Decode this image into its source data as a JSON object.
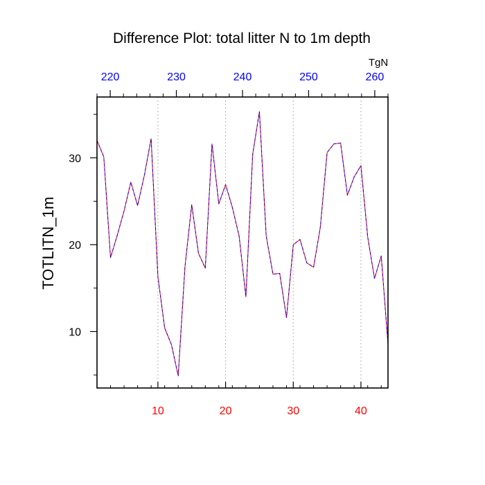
{
  "chart_data": {
    "type": "line",
    "title": "Difference Plot: total litter N to 1m depth",
    "ylabel": "TOTLITN_1m",
    "top_axis_unit": "TgN",
    "bottom_axis": {
      "range": [
        1,
        44
      ],
      "ticks": [
        10,
        20,
        30,
        40
      ],
      "labels": [
        "10",
        "20",
        "30",
        "40"
      ],
      "color": "#ff0000"
    },
    "top_axis": {
      "range": [
        218,
        262
      ],
      "ticks": [
        220,
        230,
        240,
        250,
        260
      ],
      "labels": [
        "220",
        "230",
        "240",
        "250",
        "260"
      ],
      "color": "#0000ff"
    },
    "y_axis": {
      "range": [
        3.5,
        37
      ],
      "ticks": [
        10,
        20,
        30
      ],
      "labels": [
        "10",
        "20",
        "30"
      ],
      "minor_ticks": [
        5,
        15,
        25,
        35
      ]
    },
    "grid": "vertical dashed lines at major bottom ticks",
    "series": [
      {
        "name": "red series",
        "color": "#ff0000",
        "style": "solid",
        "x": [
          1,
          2,
          3,
          4,
          5,
          6,
          7,
          8,
          9,
          10,
          11,
          12,
          13,
          14,
          15,
          16,
          17,
          18,
          19,
          20,
          21,
          22,
          23,
          24,
          25,
          26,
          27,
          28,
          29,
          30,
          31,
          32,
          33,
          34,
          35,
          36,
          37,
          38,
          39,
          40,
          41,
          42,
          43,
          44
        ],
        "values": [
          32.0,
          30.1,
          18.5,
          21.1,
          23.9,
          27.2,
          24.5,
          28.0,
          32.2,
          16.3,
          10.4,
          8.5,
          4.9,
          17.5,
          24.6,
          19.0,
          17.3,
          31.6,
          24.7,
          26.9,
          24.3,
          21.0,
          14.0,
          30.4,
          35.3,
          21.0,
          16.6,
          16.7,
          11.6,
          20.0,
          20.6,
          17.9,
          17.4,
          22.0,
          30.6,
          31.6,
          31.7,
          25.7,
          27.8,
          29.1,
          20.9,
          16.1,
          18.7,
          8.6
        ]
      },
      {
        "name": "blue series",
        "color": "#0000ff",
        "style": "dashed",
        "x": [
          1,
          2,
          3,
          4,
          5,
          6,
          7,
          8,
          9,
          10,
          11,
          12,
          13,
          14,
          15,
          16,
          17,
          18,
          19,
          20,
          21,
          22,
          23,
          24,
          25,
          26,
          27,
          28,
          29,
          30,
          31,
          32,
          33,
          34,
          35,
          36,
          37,
          38,
          39,
          40,
          41,
          42,
          43,
          44
        ],
        "values": [
          32.0,
          30.1,
          18.5,
          21.1,
          23.9,
          27.2,
          24.5,
          28.0,
          32.2,
          16.3,
          10.4,
          8.5,
          4.9,
          17.5,
          24.6,
          19.0,
          17.3,
          31.6,
          24.7,
          26.9,
          24.3,
          21.0,
          14.0,
          30.4,
          35.3,
          21.0,
          16.6,
          16.7,
          11.6,
          20.0,
          20.6,
          17.9,
          17.4,
          22.0,
          30.6,
          31.6,
          31.7,
          25.7,
          27.8,
          29.1,
          20.9,
          16.1,
          18.7,
          8.6
        ]
      }
    ]
  }
}
